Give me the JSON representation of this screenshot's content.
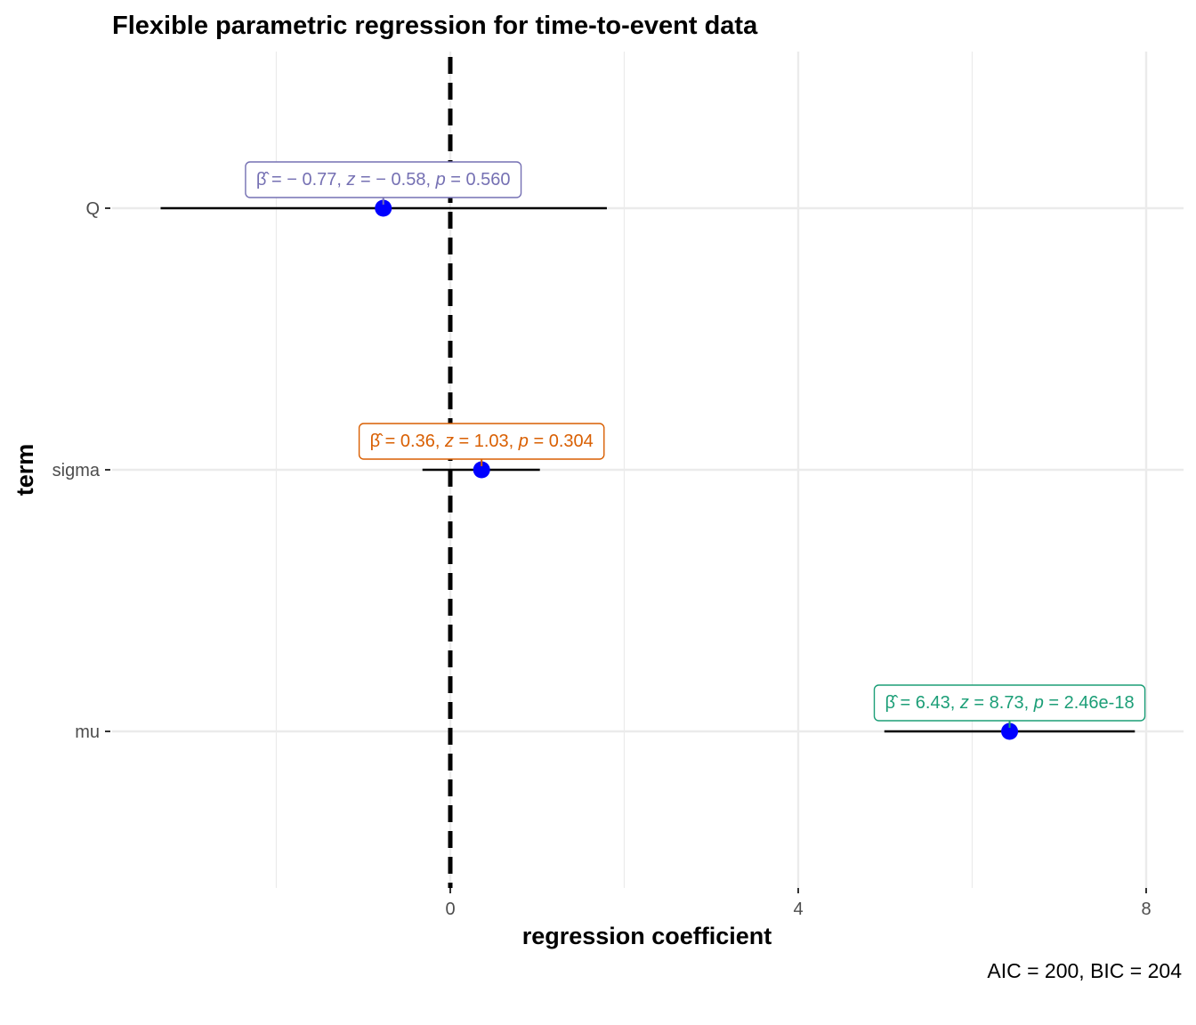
{
  "chart_data": {
    "type": "forest",
    "title": "Flexible parametric regression for time-to-event data",
    "xlabel": "regression coefficient",
    "ylabel": "term",
    "caption": "AIC = 200, BIC = 204",
    "xlim": [
      -3.0,
      8.2
    ],
    "x_ticks": [
      0,
      4,
      8
    ],
    "reference_line": 0,
    "grid": true,
    "point_color": "#0000ff",
    "terms": [
      {
        "term": "Q",
        "estimate": -0.77,
        "ci_low": -3.33,
        "ci_high": 1.8,
        "z": -0.58,
        "p": "0.560",
        "label": "β̂ = − 0.77,  z = − 0.58,  p = 0.560",
        "label_parts": [
          {
            "text": "β̂",
            "italic": false
          },
          {
            "text": " = − 0.77,  ",
            "italic": false
          },
          {
            "text": "z",
            "italic": true
          },
          {
            "text": " = − 0.58,  ",
            "italic": false
          },
          {
            "text": "p",
            "italic": true
          },
          {
            "text": " = 0.560",
            "italic": false
          }
        ],
        "color": "#7570b3"
      },
      {
        "term": "sigma",
        "estimate": 0.36,
        "ci_low": -0.32,
        "ci_high": 1.03,
        "z": 1.03,
        "p": "0.304",
        "label": "β̂ = 0.36,  z = 1.03,  p = 0.304",
        "label_parts": [
          {
            "text": "β̂",
            "italic": false
          },
          {
            "text": " = 0.36,  ",
            "italic": false
          },
          {
            "text": "z",
            "italic": true
          },
          {
            "text": " = 1.03,  ",
            "italic": false
          },
          {
            "text": "p",
            "italic": true
          },
          {
            "text": " = 0.304",
            "italic": false
          }
        ],
        "color": "#d95f02"
      },
      {
        "term": "mu",
        "estimate": 6.43,
        "ci_low": 4.99,
        "ci_high": 7.87,
        "z": 8.73,
        "p": "2.46e-18",
        "label": "β̂ = 6.43,  z = 8.73,  p = 2.46e-18",
        "label_parts": [
          {
            "text": "β̂",
            "italic": false
          },
          {
            "text": " = 6.43,  ",
            "italic": false
          },
          {
            "text": "z",
            "italic": true
          },
          {
            "text": " = 8.73,  ",
            "italic": false
          },
          {
            "text": "p",
            "italic": true
          },
          {
            "text": " = 2.46e-18",
            "italic": false
          }
        ],
        "color": "#1b9e77"
      }
    ]
  }
}
